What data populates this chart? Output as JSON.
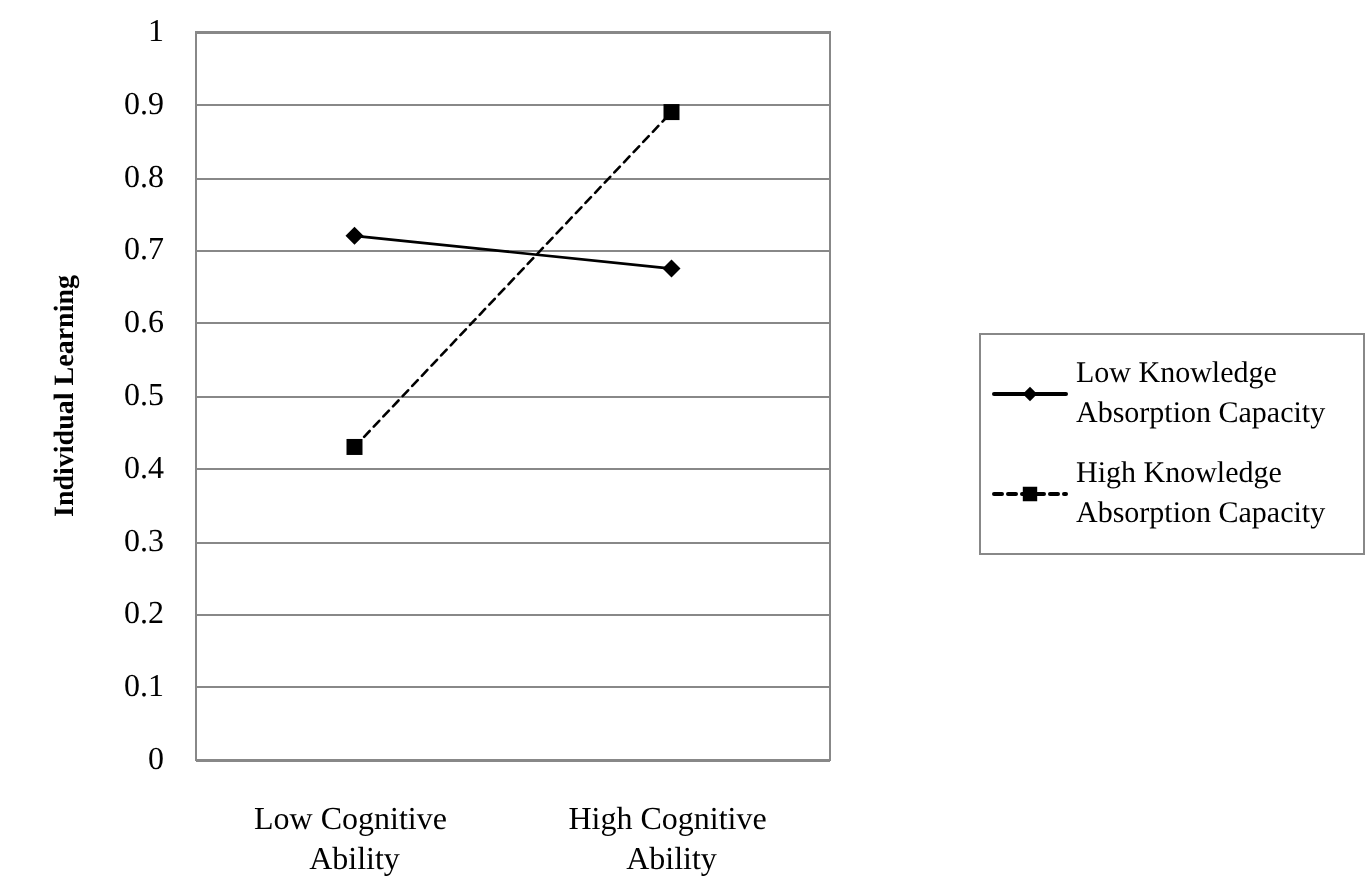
{
  "chart_data": {
    "type": "line",
    "ylabel": "Individual Learning",
    "categories": [
      "Low Cognitive Ability",
      "High Cognitive Ability"
    ],
    "series": [
      {
        "name": "Low Knowledge Absorption Capacity",
        "color": "#000000",
        "values": [
          0.72,
          0.675
        ],
        "marker": "diamond",
        "line_style": "solid"
      },
      {
        "name": "High Knowledge Absorption Capacity",
        "color": "#000000",
        "values": [
          0.43,
          0.89
        ],
        "marker": "square",
        "line_style": "dashed"
      }
    ],
    "ylim": [
      0,
      1
    ],
    "yticks": [
      0,
      0.1,
      0.2,
      0.3,
      0.4,
      0.5,
      0.6,
      0.7,
      0.8,
      0.9,
      1
    ],
    "grid": "y",
    "legend": "right"
  }
}
